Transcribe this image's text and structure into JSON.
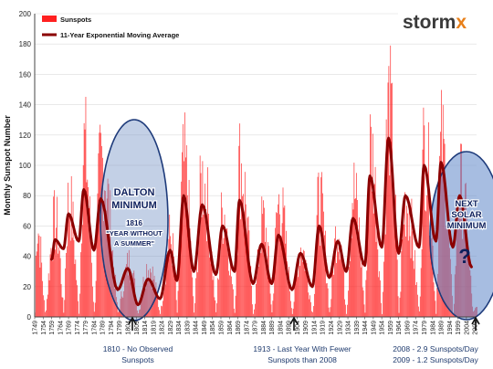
{
  "chart_data": {
    "type": "bar",
    "title": "",
    "xlabel": "",
    "ylabel": "Monthly Sunspot Number",
    "ylim": [
      0,
      200
    ],
    "yticks": [
      0,
      20,
      40,
      60,
      80,
      100,
      120,
      140,
      160,
      180,
      200
    ],
    "grid": true,
    "legend_position": "top-left",
    "x_tick_labels": [
      "1749",
      "1754",
      "1759",
      "1764",
      "1769",
      "1774",
      "1779",
      "1784",
      "1789",
      "1794",
      "1799",
      "1804",
      "1809",
      "1814",
      "1819",
      "1824",
      "1829",
      "1834",
      "1839",
      "1844",
      "1849",
      "1854",
      "1859",
      "1864",
      "1869",
      "1874",
      "1879",
      "1884",
      "1889",
      "1894",
      "1899",
      "1904",
      "1909",
      "1914",
      "1919",
      "1924",
      "1929",
      "1934",
      "1939",
      "1944",
      "1949",
      "1954",
      "1959",
      "1964",
      "1969",
      "1974",
      "1979",
      "1984",
      "1989",
      "1994",
      "1999",
      "2004",
      "2009"
    ],
    "x_range": [
      1749,
      2010
    ],
    "series": [
      {
        "name": "Sunspots",
        "color": "#ff2020",
        "cycles": [
          {
            "min_year": 1749,
            "max_year": 1750,
            "peak": 84
          },
          {
            "min_year": 1755,
            "max_year": 1761,
            "peak": 86
          },
          {
            "min_year": 1766,
            "max_year": 1769,
            "peak": 106
          },
          {
            "min_year": 1775,
            "max_year": 1778,
            "peak": 155
          },
          {
            "min_year": 1784,
            "max_year": 1788,
            "peak": 141
          },
          {
            "min_year": 1798,
            "max_year": 1805,
            "peak": 49
          },
          {
            "min_year": 1810,
            "max_year": 1816,
            "peak": 46
          },
          {
            "min_year": 1823,
            "max_year": 1829,
            "peak": 72
          },
          {
            "min_year": 1833,
            "max_year": 1837,
            "peak": 137
          },
          {
            "min_year": 1843,
            "max_year": 1848,
            "peak": 125
          },
          {
            "min_year": 1856,
            "max_year": 1860,
            "peak": 97
          },
          {
            "min_year": 1867,
            "max_year": 1870,
            "peak": 139
          },
          {
            "min_year": 1878,
            "max_year": 1884,
            "peak": 87
          },
          {
            "min_year": 1889,
            "max_year": 1893,
            "peak": 103
          },
          {
            "min_year": 1901,
            "max_year": 1906,
            "peak": 64
          },
          {
            "min_year": 1913,
            "max_year": 1917,
            "peak": 105
          },
          {
            "min_year": 1923,
            "max_year": 1928,
            "peak": 83
          },
          {
            "min_year": 1933,
            "max_year": 1937,
            "peak": 114
          },
          {
            "min_year": 1944,
            "max_year": 1947,
            "peak": 152
          },
          {
            "min_year": 1954,
            "max_year": 1958,
            "peak": 190
          },
          {
            "min_year": 1964,
            "max_year": 1968,
            "peak": 106
          },
          {
            "min_year": 1976,
            "max_year": 1979,
            "peak": 156
          },
          {
            "min_year": 1986,
            "max_year": 1989,
            "peak": 154
          },
          {
            "min_year": 1996,
            "max_year": 2000,
            "peak": 120
          },
          {
            "min_year": 2008,
            "max_year": 2010,
            "peak": 8
          }
        ]
      },
      {
        "name": "11-Year Exponential Moving Average",
        "color": "#8b0000",
        "type": "line",
        "x_start": 1759,
        "x_end": 2007,
        "peaks": [
          {
            "year": 1761,
            "value": 51
          },
          {
            "year": 1769,
            "value": 68
          },
          {
            "year": 1778,
            "value": 84
          },
          {
            "year": 1788,
            "value": 78
          },
          {
            "year": 1804,
            "value": 32
          },
          {
            "year": 1816,
            "value": 25
          },
          {
            "year": 1829,
            "value": 44
          },
          {
            "year": 1837,
            "value": 80
          },
          {
            "year": 1848,
            "value": 74
          },
          {
            "year": 1860,
            "value": 60
          },
          {
            "year": 1870,
            "value": 77
          },
          {
            "year": 1883,
            "value": 48
          },
          {
            "year": 1893,
            "value": 54
          },
          {
            "year": 1906,
            "value": 42
          },
          {
            "year": 1917,
            "value": 60
          },
          {
            "year": 1928,
            "value": 50
          },
          {
            "year": 1937,
            "value": 65
          },
          {
            "year": 1947,
            "value": 93
          },
          {
            "year": 1958,
            "value": 118
          },
          {
            "year": 1968,
            "value": 80
          },
          {
            "year": 1979,
            "value": 100
          },
          {
            "year": 1989,
            "value": 102
          },
          {
            "year": 2000,
            "value": 80
          }
        ],
        "troughs": [
          {
            "year": 1759,
            "value": 38
          },
          {
            "year": 1766,
            "value": 45
          },
          {
            "year": 1775,
            "value": 50
          },
          {
            "year": 1784,
            "value": 44
          },
          {
            "year": 1798,
            "value": 18
          },
          {
            "year": 1810,
            "value": 8
          },
          {
            "year": 1823,
            "value": 12
          },
          {
            "year": 1833,
            "value": 24
          },
          {
            "year": 1843,
            "value": 30
          },
          {
            "year": 1856,
            "value": 28
          },
          {
            "year": 1867,
            "value": 30
          },
          {
            "year": 1878,
            "value": 22
          },
          {
            "year": 1889,
            "value": 22
          },
          {
            "year": 1901,
            "value": 18
          },
          {
            "year": 1913,
            "value": 20
          },
          {
            "year": 1923,
            "value": 26
          },
          {
            "year": 1933,
            "value": 30
          },
          {
            "year": 1944,
            "value": 34
          },
          {
            "year": 1954,
            "value": 46
          },
          {
            "year": 1964,
            "value": 42
          },
          {
            "year": 1976,
            "value": 46
          },
          {
            "year": 1986,
            "value": 50
          },
          {
            "year": 1996,
            "value": 46
          },
          {
            "year": 2007,
            "value": 33
          }
        ]
      }
    ],
    "annotations": [
      {
        "year": 1810,
        "text": "1810 - No Observed Sunspots"
      },
      {
        "year": 1913,
        "text": "1913 - Last Year With Fewer Sunspots than 2008"
      },
      {
        "year": 2008,
        "text": "2008 - 2.9 Sunspots/Day"
      },
      {
        "year": 2009,
        "text": "2009 - 1.2 Sunspots/Day"
      }
    ]
  },
  "logo": {
    "main": "storm",
    "accent": "x"
  },
  "dalton": {
    "title_line1": "DALTON",
    "title_line2": "MINIMUM",
    "year": "1816",
    "caption_line1": "\"YEAR WITHOUT",
    "caption_line2": "A SUMMER\""
  },
  "next_minimum": {
    "line1": "NEXT",
    "line2": "SOLAR",
    "line3": "MINIMUM",
    "symbol": "?"
  },
  "notes": {
    "note1_line1": "1810 - No Observed",
    "note1_line2": "Sunspots",
    "note2_line1": "1913 - Last Year With Fewer",
    "note2_line2": "Sunspots than 2008",
    "note3_line1": "2008 - 2.9 Sunspots/Day",
    "note3_line2": "2009 - 1.2 Sunspots/Day"
  }
}
